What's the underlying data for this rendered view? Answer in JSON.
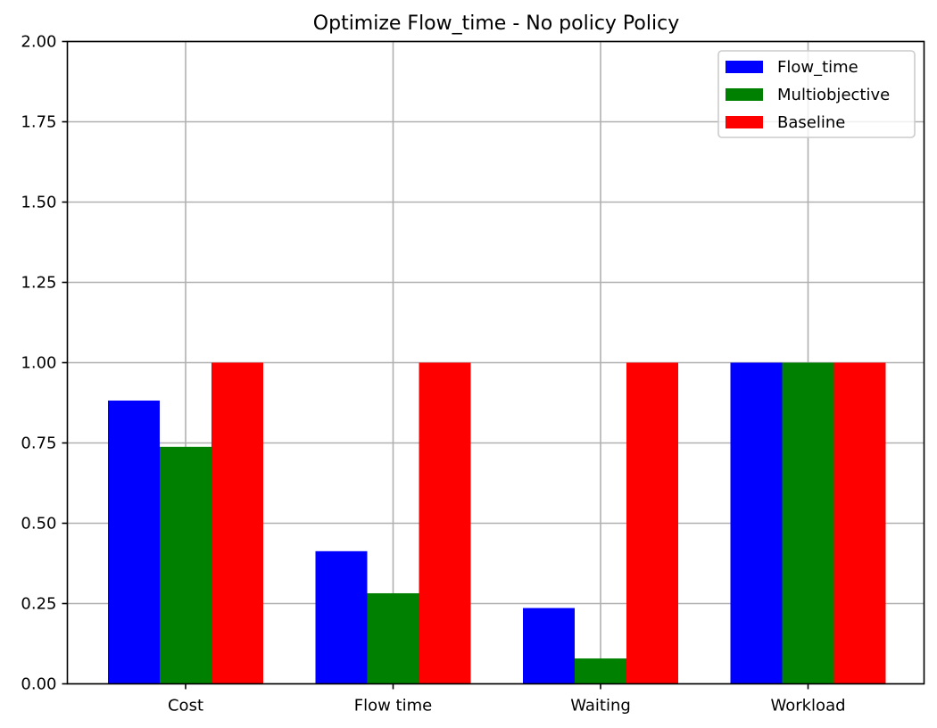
{
  "chart_data": {
    "type": "bar",
    "title": "Optimize Flow_time - No policy Policy",
    "xlabel": "",
    "ylabel": "",
    "categories": [
      "Cost",
      "Flow time",
      "Waiting",
      "Workload"
    ],
    "series": [
      {
        "name": "Flow_time",
        "color": "#0000ff",
        "values": [
          0.882,
          0.413,
          0.236,
          1.0
        ]
      },
      {
        "name": "Multiobjective",
        "color": "#008000",
        "values": [
          0.738,
          0.282,
          0.079,
          1.0
        ]
      },
      {
        "name": "Baseline",
        "color": "#ff0000",
        "values": [
          1.0,
          1.0,
          1.0,
          1.0
        ]
      }
    ],
    "ylim": [
      0,
      2.0
    ],
    "yticks": [
      "0.00",
      "0.25",
      "0.50",
      "0.75",
      "1.00",
      "1.25",
      "1.50",
      "1.75",
      "2.00"
    ],
    "grid": true,
    "legend_position": "top-right"
  }
}
